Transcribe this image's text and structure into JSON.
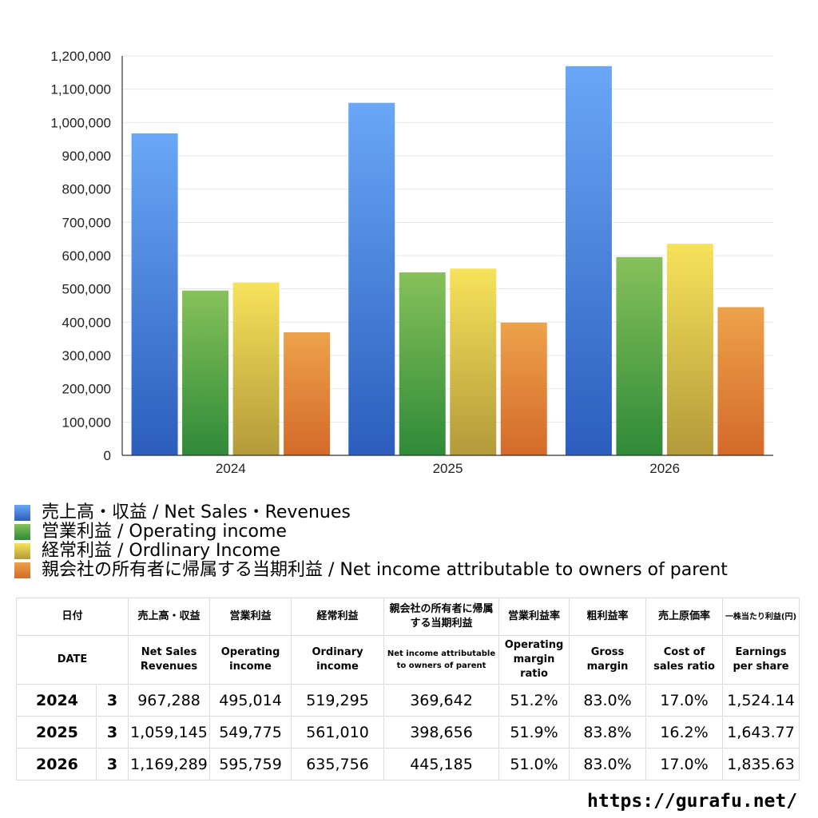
{
  "chart_data": {
    "type": "bar",
    "categories": [
      "2024",
      "2025",
      "2026"
    ],
    "series": [
      {
        "name": "売上高・収益 / Net Sales・Revenues",
        "values": [
          967288,
          1059145,
          1169289
        ],
        "color_top": "#6aa7f7",
        "color_bottom": "#2c5dbd"
      },
      {
        "name": "営業利益 / Operating income",
        "values": [
          495014,
          549775,
          595759
        ],
        "color_top": "#86c15a",
        "color_bottom": "#2f8a38"
      },
      {
        "name": "経常利益 / Ordlinary Income",
        "values": [
          519295,
          561010,
          635756
        ],
        "color_top": "#f7e25a",
        "color_bottom": "#b39a3a"
      },
      {
        "name": "親会社の所有者に帰属する当期利益 / Net income attributable to owners of parent",
        "values": [
          369642,
          398656,
          445185
        ],
        "color_top": "#eda24a",
        "color_bottom": "#d46a2a"
      }
    ],
    "ylim": [
      0,
      1200000
    ],
    "yticks": [
      "0",
      "100,000",
      "200,000",
      "300,000",
      "400,000",
      "500,000",
      "600,000",
      "700,000",
      "800,000",
      "900,000",
      "1,000,000",
      "1,100,000",
      "1,200,000"
    ],
    "ytick_values": [
      0,
      100000,
      200000,
      300000,
      400000,
      500000,
      600000,
      700000,
      800000,
      900000,
      1000000,
      1100000,
      1200000
    ],
    "grid": true,
    "legend_position": "bottom"
  },
  "table": {
    "headers_jp": [
      "日付",
      "売上高・収益",
      "営業利益",
      "経常利益",
      "親会社の所有者に帰属する当期利益",
      "営業利益率",
      "粗利益率",
      "売上原価率",
      "一株当たり利益(円)"
    ],
    "headers_en": [
      "DATE",
      "Net Sales Revenues",
      "Operating income",
      "Ordinary income",
      "Net income attributable to owners of parent",
      "Operating margin ratio",
      "Gross margin",
      "Cost of sales ratio",
      "Earnings per share"
    ],
    "rows": [
      {
        "year": "2024",
        "month": "3",
        "values": [
          "967,288",
          "495,014",
          "519,295",
          "369,642",
          "51.2%",
          "83.0%",
          "17.0%",
          "1,524.14"
        ]
      },
      {
        "year": "2025",
        "month": "3",
        "values": [
          "1,059,145",
          "549,775",
          "561,010",
          "398,656",
          "51.9%",
          "83.8%",
          "16.2%",
          "1,643.77"
        ]
      },
      {
        "year": "2026",
        "month": "3",
        "values": [
          "1,169,289",
          "595,759",
          "635,756",
          "445,185",
          "51.0%",
          "83.0%",
          "17.0%",
          "1,835.63"
        ]
      }
    ]
  },
  "footer": {
    "url": "https://gurafu.net/"
  }
}
